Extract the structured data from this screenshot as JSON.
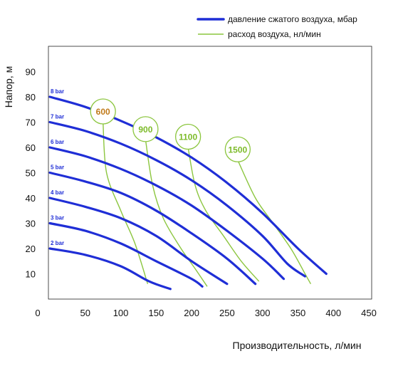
{
  "chart_data": {
    "type": "line",
    "xlabel": "Производительность, л/мин",
    "ylabel": "Напор, м",
    "xlim": [
      0,
      450
    ],
    "ylim": [
      0,
      100
    ],
    "xticks": [
      "0",
      "50",
      "100",
      "150",
      "200",
      "250",
      "300",
      "350",
      "400",
      "450"
    ],
    "yticks": [
      "10",
      "20",
      "30",
      "40",
      "50",
      "60",
      "70",
      "80",
      "90"
    ],
    "legend": [
      {
        "label": "давление сжатого воздуха, мбар",
        "color": "#1f2ed6"
      },
      {
        "label": "расход воздуха, нл/мин",
        "color": "#8cc63f"
      }
    ],
    "colors": {
      "pressure": "#1f2ed6",
      "air": "#8cc63f",
      "bar_label": "#1f2ed6",
      "bubble_border": "#8cc63f",
      "bubble_600": "#c07a1a",
      "bubble_other": "#7dbb2a"
    },
    "pressure_series": [
      {
        "name": "2 bar",
        "points": [
          [
            0,
            20
          ],
          [
            50,
            17.5
          ],
          [
            100,
            13
          ],
          [
            140,
            7
          ],
          [
            170,
            4
          ]
        ]
      },
      {
        "name": "3 bar",
        "points": [
          [
            0,
            30
          ],
          [
            50,
            27
          ],
          [
            100,
            22
          ],
          [
            150,
            15
          ],
          [
            200,
            8
          ],
          [
            215,
            5
          ]
        ]
      },
      {
        "name": "4 bar",
        "points": [
          [
            0,
            40
          ],
          [
            50,
            36.5
          ],
          [
            100,
            32
          ],
          [
            150,
            25
          ],
          [
            200,
            15
          ],
          [
            250,
            6
          ]
        ]
      },
      {
        "name": "5 bar",
        "points": [
          [
            0,
            50
          ],
          [
            50,
            46.5
          ],
          [
            100,
            42
          ],
          [
            150,
            35
          ],
          [
            200,
            26
          ],
          [
            250,
            16
          ],
          [
            290,
            6
          ]
        ]
      },
      {
        "name": "6 bar",
        "points": [
          [
            0,
            60
          ],
          [
            50,
            56.5
          ],
          [
            100,
            51.5
          ],
          [
            150,
            45
          ],
          [
            200,
            37
          ],
          [
            250,
            27
          ],
          [
            300,
            16
          ],
          [
            330,
            8
          ]
        ]
      },
      {
        "name": "7 bar",
        "points": [
          [
            0,
            70
          ],
          [
            50,
            66.5
          ],
          [
            100,
            61.5
          ],
          [
            150,
            55
          ],
          [
            200,
            47
          ],
          [
            250,
            37
          ],
          [
            300,
            25
          ],
          [
            335,
            14
          ],
          [
            360,
            9
          ]
        ]
      },
      {
        "name": "8 bar",
        "points": [
          [
            0,
            80
          ],
          [
            50,
            76
          ],
          [
            100,
            70.5
          ],
          [
            150,
            64
          ],
          [
            200,
            56
          ],
          [
            250,
            46
          ],
          [
            300,
            34
          ],
          [
            350,
            20
          ],
          [
            390,
            10
          ]
        ]
      }
    ],
    "air_series": [
      {
        "name": "600",
        "points": [
          [
            75,
            70
          ],
          [
            80,
            50
          ],
          [
            100,
            35
          ],
          [
            120,
            22
          ],
          [
            138,
            6
          ]
        ]
      },
      {
        "name": "900",
        "points": [
          [
            135,
            63
          ],
          [
            145,
            45
          ],
          [
            160,
            32
          ],
          [
            185,
            20
          ],
          [
            205,
            12
          ],
          [
            222,
            5
          ]
        ]
      },
      {
        "name": "1100",
        "points": [
          [
            195,
            60
          ],
          [
            205,
            45
          ],
          [
            220,
            35
          ],
          [
            245,
            25
          ],
          [
            270,
            15
          ],
          [
            295,
            7
          ]
        ]
      },
      {
        "name": "1500",
        "points": [
          [
            265,
            55
          ],
          [
            290,
            40
          ],
          [
            315,
            30
          ],
          [
            340,
            20
          ],
          [
            360,
            10
          ],
          [
            368,
            6
          ]
        ]
      }
    ]
  }
}
